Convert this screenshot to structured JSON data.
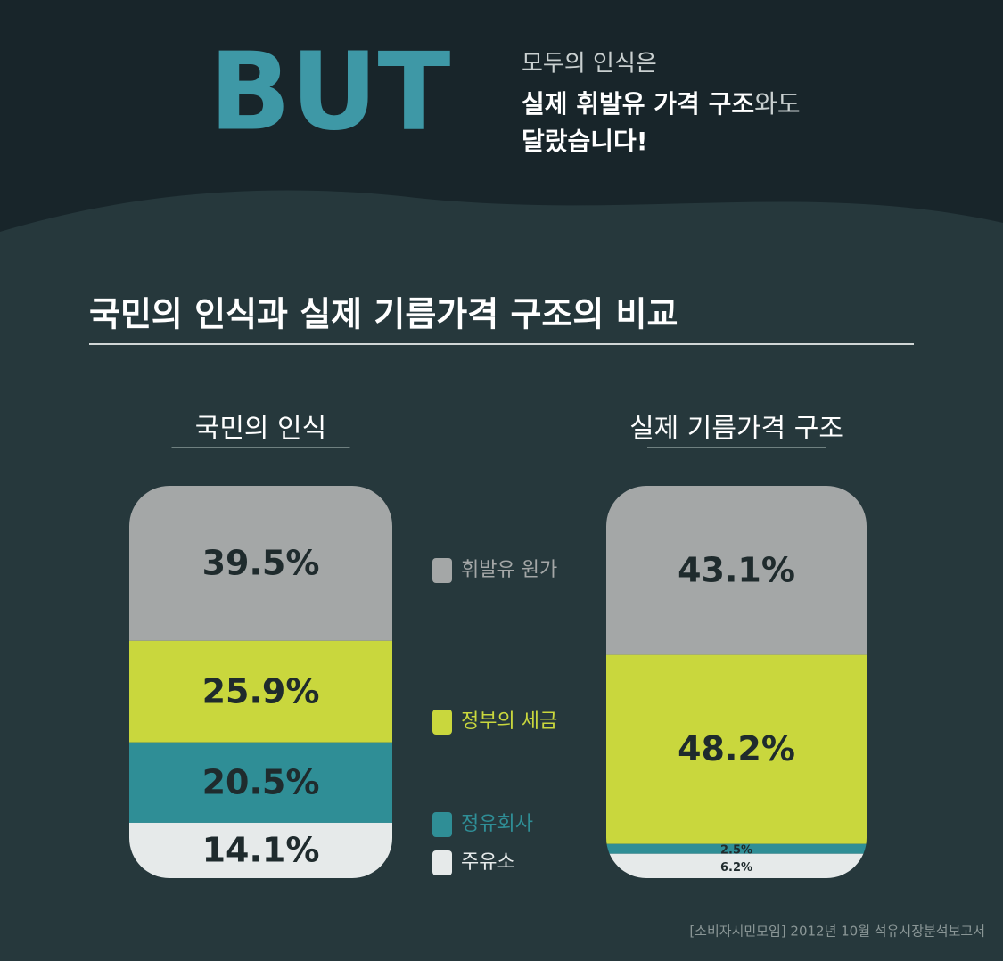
{
  "header": {
    "big": "BUT",
    "line1": "모두의 인식은",
    "line2_bold": "실제 휘발유 가격 구조",
    "line2_rest": "와도",
    "line3": "달랐습니다!"
  },
  "chart_data": {
    "type": "bar",
    "stacked": true,
    "title": "국민의 인식과 실제 기름가격 구조의 비교",
    "categories": [
      "국민의 인식",
      "실제 기름가격 구조"
    ],
    "series": [
      {
        "name": "휘발유 원가",
        "color": "#a4a7a7",
        "values": [
          39.5,
          43.1
        ],
        "value_labels": [
          "39.5%",
          "43.1%"
        ]
      },
      {
        "name": "정부의 세금",
        "color": "#c9d73d",
        "values": [
          25.9,
          48.2
        ],
        "value_labels": [
          "25.9%",
          "48.2%"
        ]
      },
      {
        "name": "정유회사",
        "color": "#2f8e96",
        "values": [
          20.5,
          2.5
        ],
        "value_labels": [
          "20.5%",
          "2.5%"
        ]
      },
      {
        "name": "주유소",
        "color": "#e6eaea",
        "values": [
          14.1,
          6.2
        ],
        "value_labels": [
          "14.1%",
          "6.2%"
        ]
      }
    ]
  },
  "source": "[소비자시민모임] 2012년 10월 석유시장분석보고서"
}
